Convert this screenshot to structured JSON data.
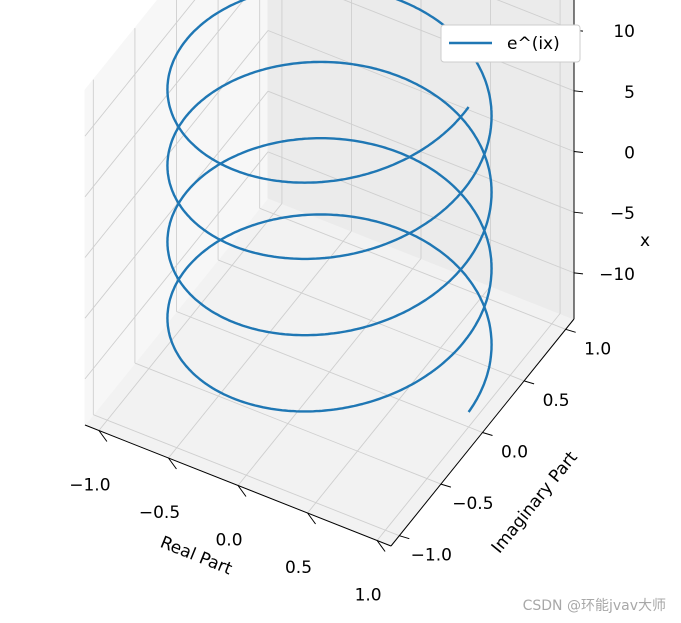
{
  "chart_data": {
    "type": "line",
    "projection": "3d",
    "series": [
      {
        "name": "e^(ix)",
        "x_param_range": [
          -12.566,
          12.566
        ],
        "real_part": "cos(x)",
        "imaginary_part": "sin(x)",
        "color": "#1f77b4"
      }
    ],
    "xlabel": "Real Part",
    "ylabel": "Imaginary Part",
    "zlabel": "x",
    "x_ticks": [
      "−1.0",
      "−0.5",
      "0.0",
      "0.5",
      "1.0"
    ],
    "y_ticks": [
      "−1.0",
      "−0.5",
      "0.0",
      "0.5",
      "1.0"
    ],
    "z_ticks": [
      "−10",
      "−5",
      "0",
      "5",
      "10"
    ],
    "xlim": [
      -1.1,
      1.1
    ],
    "ylim": [
      -1.1,
      1.1
    ],
    "zlim": [
      -13.8,
      13.8
    ],
    "grid": true,
    "legend": "top-right"
  },
  "watermark": "CSDN @环能jvav大师"
}
